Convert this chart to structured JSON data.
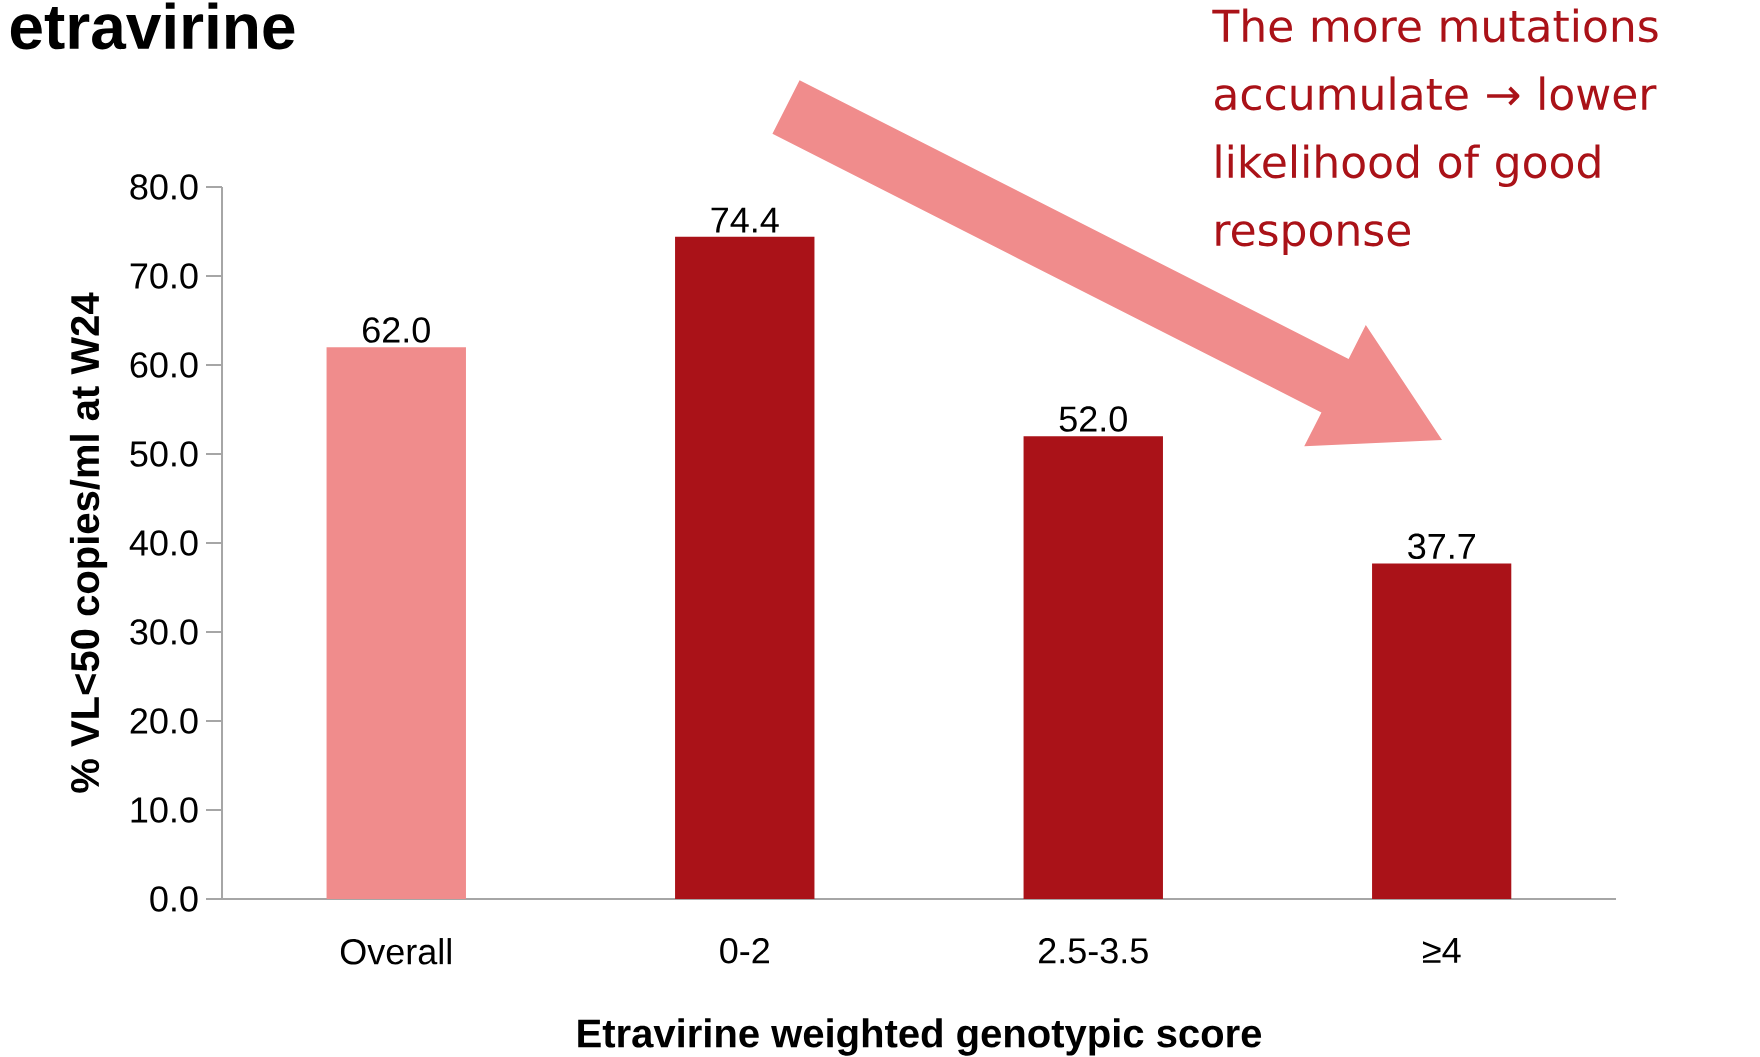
{
  "chart_data": {
    "type": "bar",
    "title": "etravirine",
    "xlabel": "Etravirine weighted genotypic score",
    "ylabel": "% VL<50 copies/ml at W24",
    "categories": [
      "Overall",
      "0-2",
      "2.5-3.5",
      "≥4"
    ],
    "values": [
      62.0,
      74.4,
      52.0,
      37.7
    ],
    "colors": [
      "#f08c8c",
      "#aa1218",
      "#aa1218",
      "#aa1218"
    ],
    "value_labels": [
      "62.0",
      "74.4",
      "52.0",
      "37.7"
    ],
    "ylim": [
      0,
      80
    ],
    "yticks": [
      {
        "value": 0,
        "label": "0.0"
      },
      {
        "value": 10,
        "label": "10.0"
      },
      {
        "value": 20,
        "label": "20.0"
      },
      {
        "value": 30,
        "label": "30.0"
      },
      {
        "value": 40,
        "label": "40.0"
      },
      {
        "value": 50,
        "label": "50.0"
      },
      {
        "value": 60,
        "label": "60.0"
      },
      {
        "value": 70,
        "label": "70.0"
      },
      {
        "value": 80,
        "label": "80.0"
      }
    ],
    "annotations": [
      "The more mutations accumulate → lower likelihood of good response"
    ]
  }
}
